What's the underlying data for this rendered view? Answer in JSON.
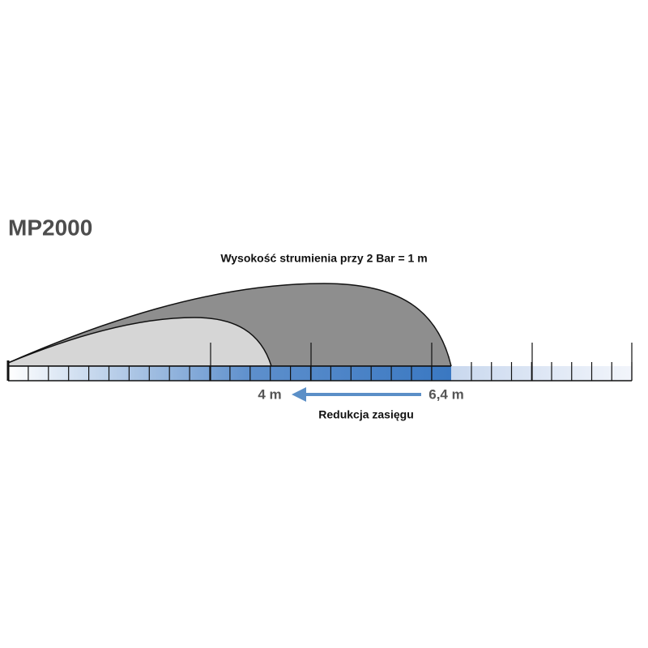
{
  "title": "MP2000",
  "subtitle": "Wysokość strumienia przy 2 Bar = 1 m",
  "labels": {
    "short_range": "4 m",
    "long_range": "6,4 m",
    "caption": "Redukcja zasięgu"
  }
}
